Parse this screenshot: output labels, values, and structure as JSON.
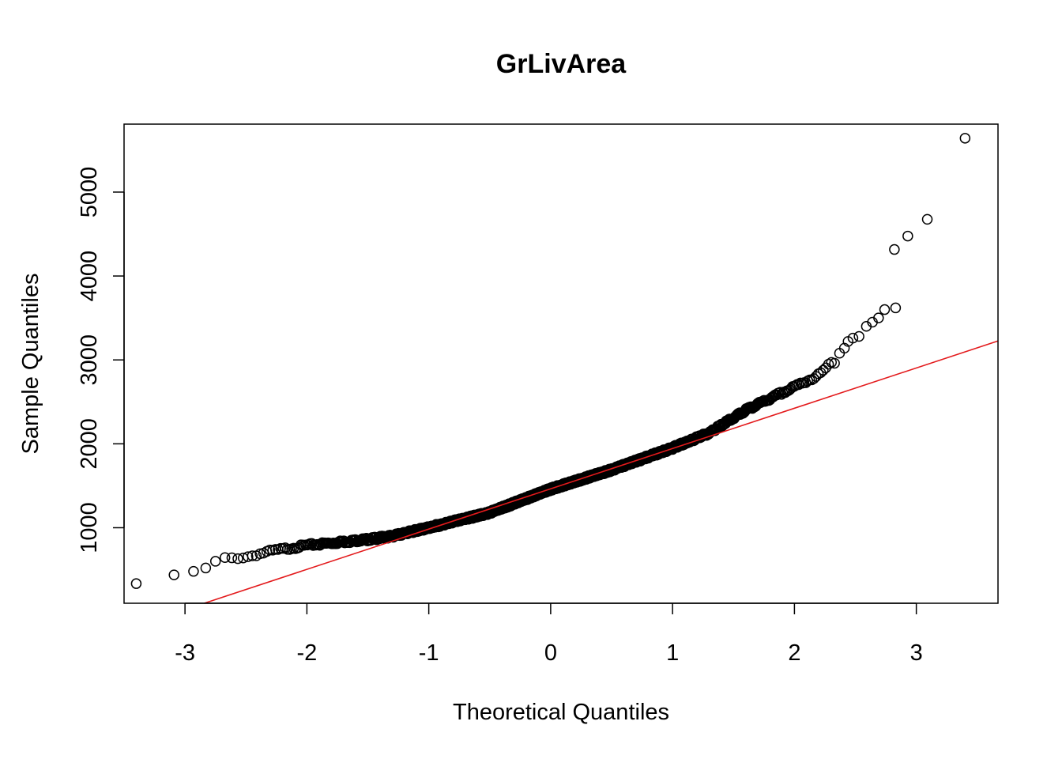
{
  "chart_data": {
    "type": "scatter",
    "title": "GrLivArea",
    "xlabel": "Theoretical Quantiles",
    "ylabel": "Sample Quantiles",
    "xlim": [
      -3.5,
      3.67
    ],
    "ylim": [
      100,
      5810
    ],
    "x_ticks": [
      -3,
      -2,
      -1,
      0,
      1,
      2,
      3
    ],
    "x_tick_labels": [
      "-3",
      "-2",
      "-1",
      "0",
      "1",
      "2",
      "3"
    ],
    "y_ticks": [
      1000,
      2000,
      3000,
      4000,
      5000
    ],
    "y_tick_labels": [
      "1000",
      "2000",
      "3000",
      "4000",
      "5000"
    ],
    "grid": false,
    "legend": "none",
    "point_color": "#000000",
    "line_color": "#e31a1c",
    "reference_line": {
      "slope": 480,
      "intercept": 1464
    },
    "curve_knots": [
      [
        -2.7,
        630
      ],
      [
        -2.5,
        650
      ],
      [
        -2.3,
        720
      ],
      [
        -2.0,
        790
      ],
      [
        -1.5,
        860
      ],
      [
        -1.3,
        900
      ],
      [
        -1.0,
        1000
      ],
      [
        -0.5,
        1180
      ],
      [
        0.0,
        1460
      ],
      [
        0.5,
        1690
      ],
      [
        1.0,
        1950
      ],
      [
        1.3,
        2130
      ],
      [
        1.6,
        2400
      ],
      [
        2.0,
        2680
      ],
      [
        2.2,
        2820
      ],
      [
        2.3,
        2960
      ]
    ],
    "tail_points": [
      [
        -3.4,
        334
      ],
      [
        -3.09,
        438
      ],
      [
        -2.93,
        480
      ],
      [
        -2.83,
        520
      ],
      [
        -2.75,
        600
      ],
      [
        2.37,
        3080
      ],
      [
        2.41,
        3140
      ],
      [
        2.44,
        3220
      ],
      [
        2.48,
        3260
      ],
      [
        2.53,
        3280
      ],
      [
        2.59,
        3400
      ],
      [
        2.64,
        3450
      ],
      [
        2.69,
        3500
      ],
      [
        2.74,
        3600
      ],
      [
        2.83,
        3620
      ],
      [
        2.82,
        4316
      ],
      [
        2.93,
        4476
      ],
      [
        3.09,
        4676
      ],
      [
        3.4,
        5642
      ]
    ]
  }
}
